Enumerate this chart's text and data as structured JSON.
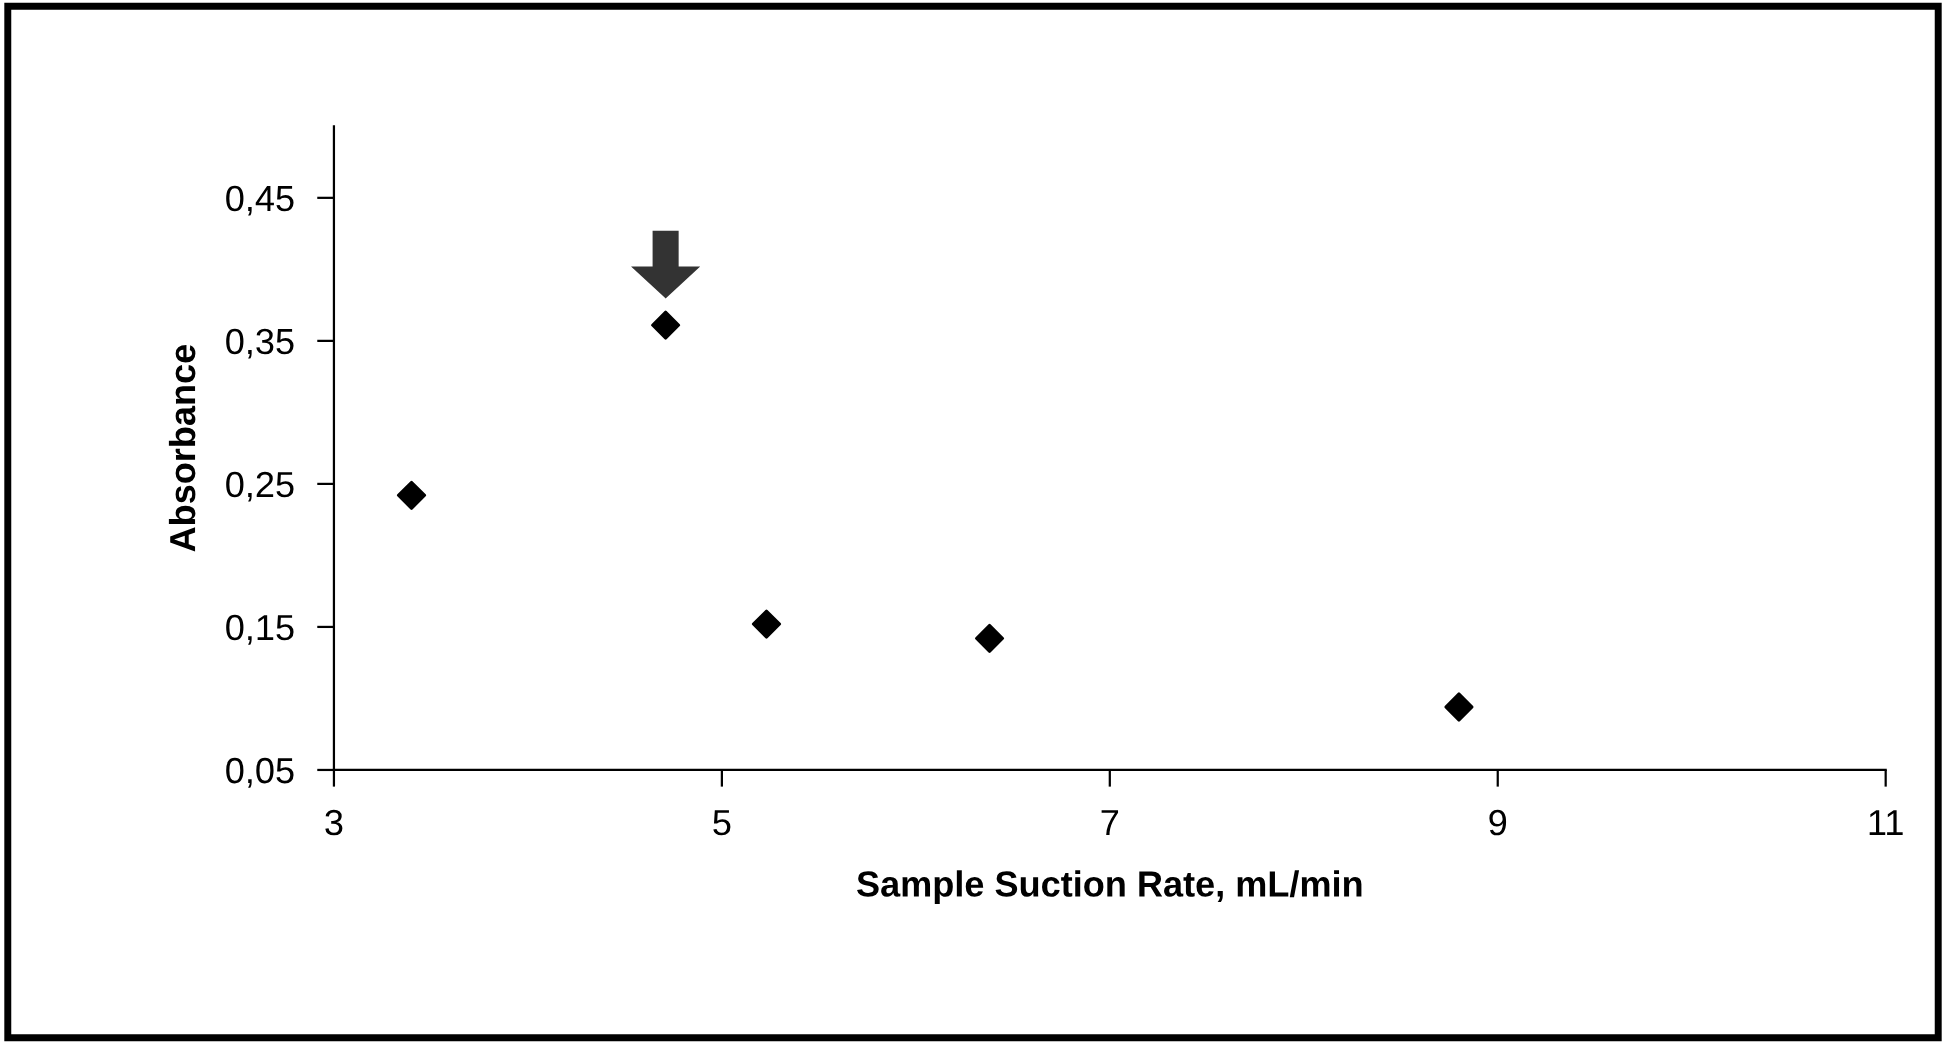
{
  "chart_data": {
    "type": "scatter",
    "xlabel": "Sample Suction Rate, mL/min",
    "ylabel": "Absorbance",
    "x": [
      3.4,
      4.71,
      5.23,
      6.38,
      8.8
    ],
    "series": [
      {
        "color": "#000000",
        "values": [
          0.242,
          0.361,
          0.152,
          0.142,
          0.094
        ]
      }
    ],
    "marker": "diamond",
    "grid": false,
    "legend": false,
    "xlim": [
      3,
      11
    ],
    "xticks": [
      3,
      5,
      7,
      9,
      11
    ],
    "ylim": [
      0.05,
      0.5
    ],
    "yticks": [
      {
        "value": 0.05,
        "label": "0,05"
      },
      {
        "value": 0.15,
        "label": "0,15"
      },
      {
        "value": 0.25,
        "label": "0,25"
      },
      {
        "value": 0.35,
        "label": "0,35"
      },
      {
        "value": 0.45,
        "label": "0,45"
      }
    ]
  }
}
